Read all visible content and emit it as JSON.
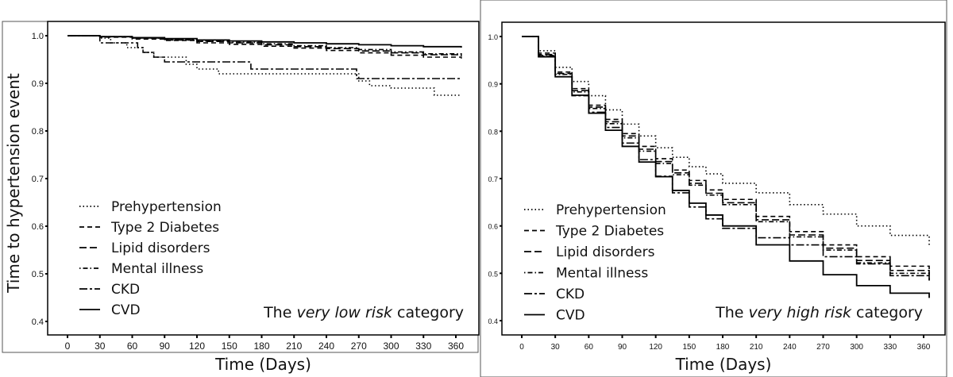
{
  "chart_data": [
    {
      "type": "line",
      "subtype": "kaplan-meier step",
      "annotation": {
        "prefix": "The ",
        "italic": "very low risk",
        "suffix": " category"
      },
      "xlabel": "Time (Days)",
      "ylabel": "Time to hypertension event",
      "xlim": [
        0,
        360
      ],
      "ylim": [
        0.4,
        1.0
      ],
      "xticks": [
        "0",
        "30",
        "60",
        "90",
        "120",
        "150",
        "180",
        "210",
        "240",
        "270",
        "300",
        "330",
        "360"
      ],
      "yticks": [
        "0.4",
        "0.5",
        "0.6",
        "0.7",
        "0.8",
        "0.9",
        "1.0"
      ],
      "legend_position": "bottom-left",
      "series": [
        {
          "name": "Prehypertension",
          "style": "dotted",
          "x": [
            0,
            30,
            40,
            55,
            70,
            80,
            90,
            110,
            120,
            140,
            260,
            270,
            280,
            300,
            340,
            365
          ],
          "y": [
            1.0,
            0.995,
            0.985,
            0.975,
            0.965,
            0.955,
            0.955,
            0.94,
            0.93,
            0.92,
            0.92,
            0.905,
            0.895,
            0.89,
            0.875,
            0.875
          ]
        },
        {
          "name": "Type 2 Diabetes",
          "style": "dashed",
          "x": [
            0,
            30,
            60,
            90,
            120,
            150,
            180,
            210,
            240,
            270,
            300,
            330,
            365
          ],
          "y": [
            1.0,
            0.997,
            0.993,
            0.99,
            0.985,
            0.982,
            0.978,
            0.974,
            0.969,
            0.964,
            0.959,
            0.955,
            0.952
          ]
        },
        {
          "name": "Lipid disorders",
          "style": "longdash",
          "x": [
            0,
            30,
            60,
            90,
            120,
            150,
            180,
            210,
            240,
            270,
            300,
            330,
            365
          ],
          "y": [
            1.0,
            0.998,
            0.995,
            0.991,
            0.988,
            0.985,
            0.981,
            0.977,
            0.973,
            0.968,
            0.964,
            0.96,
            0.957
          ]
        },
        {
          "name": "Mental illness",
          "style": "dotdash",
          "x": [
            0,
            30,
            60,
            90,
            120,
            150,
            180,
            210,
            240,
            270,
            300,
            330,
            365
          ],
          "y": [
            1.0,
            0.998,
            0.995,
            0.992,
            0.989,
            0.986,
            0.983,
            0.979,
            0.975,
            0.971,
            0.966,
            0.962,
            0.959
          ]
        },
        {
          "name": "CKD",
          "style": "twodash",
          "x": [
            0,
            25,
            30,
            55,
            65,
            70,
            80,
            90,
            160,
            170,
            260,
            268,
            365
          ],
          "y": [
            1.0,
            1.0,
            0.985,
            0.985,
            0.975,
            0.965,
            0.955,
            0.945,
            0.945,
            0.93,
            0.93,
            0.91,
            0.91
          ]
        },
        {
          "name": "CVD",
          "style": "solid",
          "x": [
            0,
            30,
            60,
            90,
            120,
            150,
            180,
            210,
            240,
            270,
            300,
            330,
            365
          ],
          "y": [
            1.0,
            0.998,
            0.996,
            0.994,
            0.991,
            0.989,
            0.987,
            0.985,
            0.983,
            0.981,
            0.979,
            0.977,
            0.975
          ]
        }
      ]
    },
    {
      "type": "line",
      "subtype": "kaplan-meier step",
      "annotation": {
        "prefix": "The ",
        "italic": "very high risk",
        "suffix": " category"
      },
      "xlabel": "Time (Days)",
      "ylabel": "",
      "xlim": [
        0,
        360
      ],
      "ylim": [
        0.4,
        1.0
      ],
      "xticks": [
        "0",
        "30",
        "60",
        "90",
        "120",
        "150",
        "180",
        "210",
        "240",
        "270",
        "300",
        "330",
        "360"
      ],
      "yticks": [
        "0.4",
        "0.5",
        "0.6",
        "0.7",
        "0.8",
        "0.9",
        "1.0"
      ],
      "legend_position": "bottom-left",
      "series": [
        {
          "name": "Prehypertension",
          "style": "dotted",
          "x": [
            0,
            15,
            30,
            45,
            60,
            75,
            90,
            105,
            120,
            135,
            150,
            165,
            180,
            210,
            240,
            270,
            300,
            330,
            365
          ],
          "y": [
            1.0,
            0.97,
            0.935,
            0.905,
            0.875,
            0.845,
            0.815,
            0.79,
            0.765,
            0.745,
            0.725,
            0.71,
            0.69,
            0.67,
            0.645,
            0.625,
            0.6,
            0.58,
            0.555
          ]
        },
        {
          "name": "Type 2 Diabetes",
          "style": "dashed",
          "x": [
            0,
            15,
            30,
            45,
            60,
            75,
            90,
            105,
            120,
            135,
            150,
            165,
            180,
            210,
            240,
            270,
            300,
            330,
            365
          ],
          "y": [
            1.0,
            0.965,
            0.925,
            0.89,
            0.855,
            0.825,
            0.795,
            0.768,
            0.742,
            0.718,
            0.696,
            0.676,
            0.656,
            0.62,
            0.588,
            0.56,
            0.535,
            0.515,
            0.497
          ]
        },
        {
          "name": "Lipid disorders",
          "style": "longdash",
          "x": [
            0,
            15,
            30,
            45,
            60,
            75,
            90,
            105,
            120,
            135,
            150,
            165,
            180,
            210,
            240,
            270,
            300,
            330,
            365
          ],
          "y": [
            1.0,
            0.962,
            0.922,
            0.886,
            0.851,
            0.82,
            0.79,
            0.762,
            0.736,
            0.712,
            0.69,
            0.669,
            0.649,
            0.613,
            0.581,
            0.553,
            0.527,
            0.506,
            0.487
          ]
        },
        {
          "name": "Mental illness",
          "style": "dotdash",
          "x": [
            0,
            15,
            30,
            45,
            60,
            75,
            90,
            105,
            120,
            135,
            150,
            165,
            180,
            210,
            240,
            270,
            300,
            330,
            365
          ],
          "y": [
            1.0,
            0.96,
            0.92,
            0.883,
            0.848,
            0.816,
            0.786,
            0.758,
            0.732,
            0.708,
            0.686,
            0.665,
            0.645,
            0.609,
            0.577,
            0.549,
            0.522,
            0.5,
            0.48
          ]
        },
        {
          "name": "CKD",
          "style": "twodash",
          "x": [
            0,
            15,
            30,
            45,
            60,
            75,
            90,
            105,
            120,
            135,
            150,
            165,
            180,
            210,
            240,
            270,
            300,
            330,
            365
          ],
          "y": [
            1.0,
            0.958,
            0.915,
            0.875,
            0.84,
            0.808,
            0.775,
            0.74,
            0.705,
            0.67,
            0.64,
            0.615,
            0.595,
            0.575,
            0.56,
            0.535,
            0.52,
            0.495,
            0.485
          ]
        },
        {
          "name": "CVD",
          "style": "solid",
          "x": [
            0,
            15,
            30,
            45,
            60,
            75,
            90,
            105,
            120,
            135,
            150,
            165,
            180,
            210,
            240,
            270,
            300,
            330,
            365
          ],
          "y": [
            1.0,
            0.957,
            0.915,
            0.876,
            0.838,
            0.802,
            0.768,
            0.735,
            0.704,
            0.675,
            0.648,
            0.623,
            0.6,
            0.56,
            0.526,
            0.497,
            0.474,
            0.458,
            0.448
          ]
        }
      ]
    }
  ]
}
